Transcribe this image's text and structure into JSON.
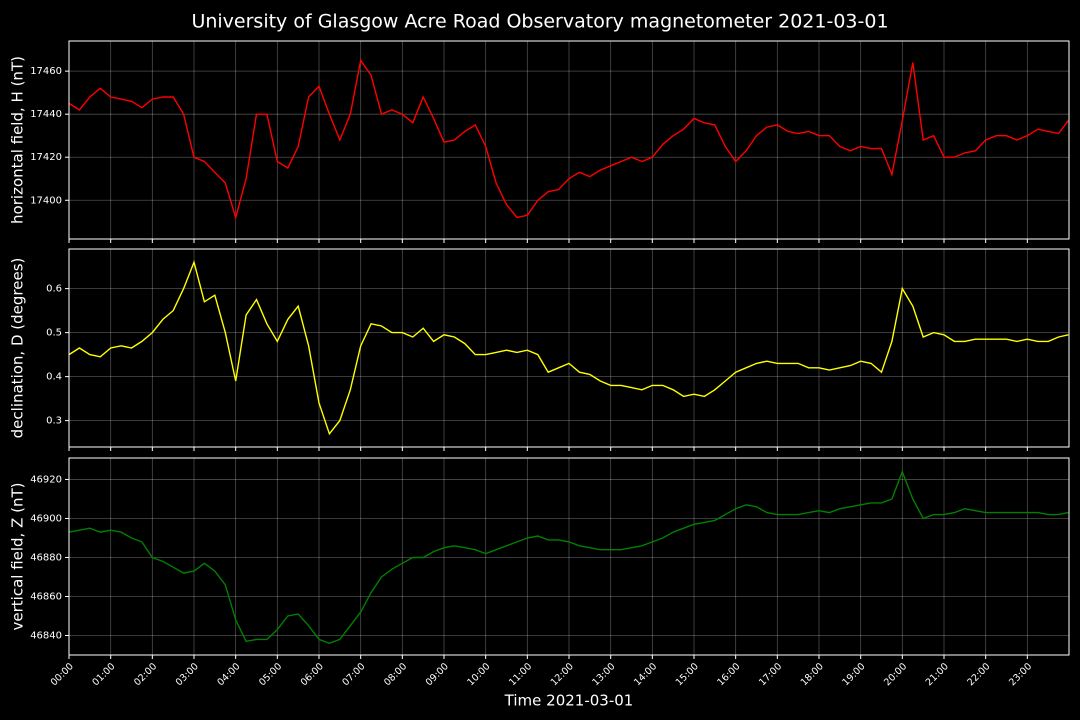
{
  "title": "University of Glasgow Acre Road Observatory magnetometer 2021-03-01",
  "xlabel": "Time 2021-03-01",
  "chart_data": [
    {
      "type": "line",
      "ylabel": "horizontal field, H (nT)",
      "color": "#ff0000",
      "grid": true,
      "xlim": [
        "00:00",
        "24:00"
      ],
      "xticks": [
        "00:00",
        "01:00",
        "02:00",
        "03:00",
        "04:00",
        "05:00",
        "06:00",
        "07:00",
        "08:00",
        "09:00",
        "10:00",
        "11:00",
        "12:00",
        "13:00",
        "14:00",
        "15:00",
        "16:00",
        "17:00",
        "18:00",
        "19:00",
        "20:00",
        "21:00",
        "22:00",
        "23:00"
      ],
      "ylim": [
        17382,
        17474
      ],
      "yticks": [
        17400,
        17420,
        17440,
        17460
      ],
      "x": [
        "00:00",
        "00:15",
        "00:30",
        "00:45",
        "01:00",
        "01:15",
        "01:30",
        "01:45",
        "02:00",
        "02:15",
        "02:30",
        "02:45",
        "03:00",
        "03:15",
        "03:30",
        "03:45",
        "04:00",
        "04:15",
        "04:30",
        "04:45",
        "05:00",
        "05:15",
        "05:30",
        "05:45",
        "06:00",
        "06:15",
        "06:30",
        "06:45",
        "07:00",
        "07:15",
        "07:30",
        "07:45",
        "08:00",
        "08:15",
        "08:30",
        "08:45",
        "09:00",
        "09:15",
        "09:30",
        "09:45",
        "10:00",
        "10:15",
        "10:30",
        "10:45",
        "11:00",
        "11:15",
        "11:30",
        "11:45",
        "12:00",
        "12:15",
        "12:30",
        "12:45",
        "13:00",
        "13:15",
        "13:30",
        "13:45",
        "14:00",
        "14:15",
        "14:30",
        "14:45",
        "15:00",
        "15:15",
        "15:30",
        "15:45",
        "16:00",
        "16:15",
        "16:30",
        "16:45",
        "17:00",
        "17:15",
        "17:30",
        "17:45",
        "18:00",
        "18:15",
        "18:30",
        "18:45",
        "19:00",
        "19:15",
        "19:30",
        "19:45",
        "20:00",
        "20:15",
        "20:30",
        "20:45",
        "21:00",
        "21:15",
        "21:30",
        "21:45",
        "22:00",
        "22:15",
        "22:30",
        "22:45",
        "23:00",
        "23:15",
        "23:30",
        "23:45",
        "23:59"
      ],
      "values": [
        17445,
        17442,
        17448,
        17452,
        17448,
        17447,
        17446,
        17443,
        17447,
        17448,
        17448,
        17440,
        17420,
        17418,
        17413,
        17408,
        17392,
        17410,
        17440,
        17440,
        17418,
        17415,
        17425,
        17448,
        17453,
        17440,
        17428,
        17440,
        17465,
        17458,
        17440,
        17442,
        17440,
        17436,
        17448,
        17438,
        17427,
        17428,
        17432,
        17435,
        17425,
        17408,
        17398,
        17392,
        17393,
        17400,
        17404,
        17405,
        17410,
        17413,
        17411,
        17414,
        17416,
        17418,
        17420,
        17418,
        17420,
        17426,
        17430,
        17433,
        17438,
        17436,
        17435,
        17425,
        17418,
        17423,
        17430,
        17434,
        17435,
        17432,
        17431,
        17432,
        17430,
        17430,
        17425,
        17423,
        17425,
        17424,
        17424,
        17412,
        17437,
        17464,
        17428,
        17430,
        17420,
        17420,
        17422,
        17423,
        17428,
        17430,
        17430,
        17428,
        17430,
        17433,
        17432,
        17431,
        17437
      ]
    },
    {
      "type": "line",
      "ylabel": "declination, D (degrees)",
      "color": "#ffff00",
      "grid": true,
      "xlim": [
        "00:00",
        "24:00"
      ],
      "xticks": [
        "00:00",
        "01:00",
        "02:00",
        "03:00",
        "04:00",
        "05:00",
        "06:00",
        "07:00",
        "08:00",
        "09:00",
        "10:00",
        "11:00",
        "12:00",
        "13:00",
        "14:00",
        "15:00",
        "16:00",
        "17:00",
        "18:00",
        "19:00",
        "20:00",
        "21:00",
        "22:00",
        "23:00"
      ],
      "ylim": [
        0.24,
        0.69
      ],
      "yticks": [
        0.3,
        0.4,
        0.5,
        0.6
      ],
      "x": [
        "00:00",
        "00:15",
        "00:30",
        "00:45",
        "01:00",
        "01:15",
        "01:30",
        "01:45",
        "02:00",
        "02:15",
        "02:30",
        "02:45",
        "03:00",
        "03:15",
        "03:30",
        "03:45",
        "04:00",
        "04:15",
        "04:30",
        "04:45",
        "05:00",
        "05:15",
        "05:30",
        "05:45",
        "06:00",
        "06:15",
        "06:30",
        "06:45",
        "07:00",
        "07:15",
        "07:30",
        "07:45",
        "08:00",
        "08:15",
        "08:30",
        "08:45",
        "09:00",
        "09:15",
        "09:30",
        "09:45",
        "10:00",
        "10:15",
        "10:30",
        "10:45",
        "11:00",
        "11:15",
        "11:30",
        "11:45",
        "12:00",
        "12:15",
        "12:30",
        "12:45",
        "13:00",
        "13:15",
        "13:30",
        "13:45",
        "14:00",
        "14:15",
        "14:30",
        "14:45",
        "15:00",
        "15:15",
        "15:30",
        "15:45",
        "16:00",
        "16:15",
        "16:30",
        "16:45",
        "17:00",
        "17:15",
        "17:30",
        "17:45",
        "18:00",
        "18:15",
        "18:30",
        "18:45",
        "19:00",
        "19:15",
        "19:30",
        "19:45",
        "20:00",
        "20:15",
        "20:30",
        "20:45",
        "21:00",
        "21:15",
        "21:30",
        "21:45",
        "22:00",
        "22:15",
        "22:30",
        "22:45",
        "23:00",
        "23:15",
        "23:30",
        "23:45",
        "23:59"
      ],
      "values": [
        0.45,
        0.465,
        0.45,
        0.445,
        0.465,
        0.47,
        0.465,
        0.48,
        0.5,
        0.53,
        0.55,
        0.6,
        0.66,
        0.57,
        0.585,
        0.5,
        0.39,
        0.54,
        0.575,
        0.52,
        0.48,
        0.53,
        0.56,
        0.47,
        0.34,
        0.27,
        0.3,
        0.37,
        0.47,
        0.52,
        0.515,
        0.5,
        0.5,
        0.49,
        0.51,
        0.48,
        0.495,
        0.49,
        0.475,
        0.45,
        0.45,
        0.455,
        0.46,
        0.455,
        0.46,
        0.45,
        0.41,
        0.42,
        0.43,
        0.41,
        0.405,
        0.39,
        0.38,
        0.38,
        0.375,
        0.37,
        0.38,
        0.38,
        0.37,
        0.355,
        0.36,
        0.355,
        0.37,
        0.39,
        0.41,
        0.42,
        0.43,
        0.435,
        0.43,
        0.43,
        0.43,
        0.42,
        0.42,
        0.415,
        0.42,
        0.425,
        0.435,
        0.43,
        0.41,
        0.48,
        0.6,
        0.56,
        0.49,
        0.5,
        0.495,
        0.48,
        0.48,
        0.485,
        0.485,
        0.485,
        0.485,
        0.48,
        0.485,
        0.48,
        0.48,
        0.49,
        0.495
      ]
    },
    {
      "type": "line",
      "ylabel": "vertical field, Z (nT)",
      "color": "#008000",
      "grid": true,
      "xlim": [
        "00:00",
        "24:00"
      ],
      "xticks": [
        "00:00",
        "01:00",
        "02:00",
        "03:00",
        "04:00",
        "05:00",
        "06:00",
        "07:00",
        "08:00",
        "09:00",
        "10:00",
        "11:00",
        "12:00",
        "13:00",
        "14:00",
        "15:00",
        "16:00",
        "17:00",
        "18:00",
        "19:00",
        "20:00",
        "21:00",
        "22:00",
        "23:00"
      ],
      "ylim": [
        46830,
        46931
      ],
      "yticks": [
        46840,
        46860,
        46880,
        46900,
        46920
      ],
      "x": [
        "00:00",
        "00:15",
        "00:30",
        "00:45",
        "01:00",
        "01:15",
        "01:30",
        "01:45",
        "02:00",
        "02:15",
        "02:30",
        "02:45",
        "03:00",
        "03:15",
        "03:30",
        "03:45",
        "04:00",
        "04:15",
        "04:30",
        "04:45",
        "05:00",
        "05:15",
        "05:30",
        "05:45",
        "06:00",
        "06:15",
        "06:30",
        "06:45",
        "07:00",
        "07:15",
        "07:30",
        "07:45",
        "08:00",
        "08:15",
        "08:30",
        "08:45",
        "09:00",
        "09:15",
        "09:30",
        "09:45",
        "10:00",
        "10:15",
        "10:30",
        "10:45",
        "11:00",
        "11:15",
        "11:30",
        "11:45",
        "12:00",
        "12:15",
        "12:30",
        "12:45",
        "13:00",
        "13:15",
        "13:30",
        "13:45",
        "14:00",
        "14:15",
        "14:30",
        "14:45",
        "15:00",
        "15:15",
        "15:30",
        "15:45",
        "16:00",
        "16:15",
        "16:30",
        "16:45",
        "17:00",
        "17:15",
        "17:30",
        "17:45",
        "18:00",
        "18:15",
        "18:30",
        "18:45",
        "19:00",
        "19:15",
        "19:30",
        "19:45",
        "20:00",
        "20:15",
        "20:30",
        "20:45",
        "21:00",
        "21:15",
        "21:30",
        "21:45",
        "22:00",
        "22:15",
        "22:30",
        "22:45",
        "23:00",
        "23:15",
        "23:30",
        "23:45",
        "23:59"
      ],
      "values": [
        46893,
        46894,
        46895,
        46893,
        46894,
        46893,
        46890,
        46888,
        46880,
        46878,
        46875,
        46872,
        46873,
        46877,
        46873,
        46866,
        46848,
        46837,
        46838,
        46838,
        46843,
        46850,
        46851,
        46845,
        46838,
        46836,
        46838,
        46845,
        46852,
        46862,
        46870,
        46874,
        46877,
        46880,
        46880,
        46883,
        46885,
        46886,
        46885,
        46884,
        46882,
        46884,
        46886,
        46888,
        46890,
        46891,
        46889,
        46889,
        46888,
        46886,
        46885,
        46884,
        46884,
        46884,
        46885,
        46886,
        46888,
        46890,
        46893,
        46895,
        46897,
        46898,
        46899,
        46902,
        46905,
        46907,
        46906,
        46903,
        46902,
        46902,
        46902,
        46903,
        46904,
        46903,
        46905,
        46906,
        46907,
        46908,
        46908,
        46910,
        46924,
        46910,
        46900,
        46902,
        46902,
        46903,
        46905,
        46904,
        46903,
        46903,
        46903,
        46903,
        46903,
        46903,
        46902,
        46902,
        46903
      ]
    }
  ]
}
